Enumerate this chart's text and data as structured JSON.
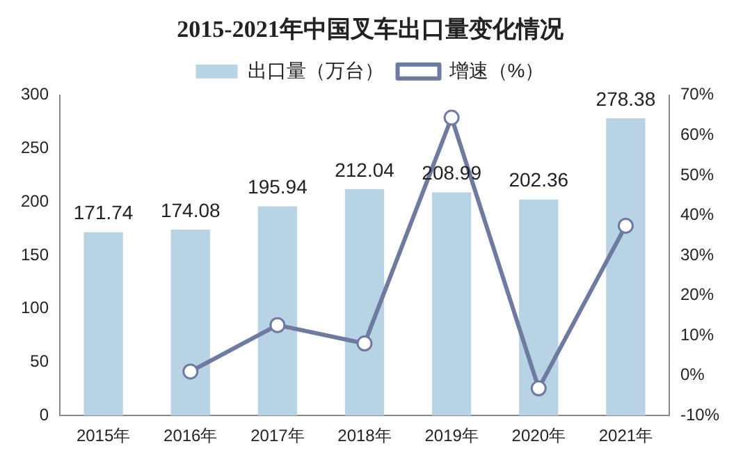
{
  "chart_data": {
    "type": "bar",
    "title": "2015-2021年中国叉车出口量变化情况",
    "categories": [
      "2015年",
      "2016年",
      "2017年",
      "2018年",
      "2019年",
      "2020年",
      "2021年"
    ],
    "series": [
      {
        "name": "出口量（万台）",
        "color": "#b8d3e4",
        "values": [
          171.74,
          174.08,
          195.94,
          212.04,
          208.99,
          202.36,
          278.38
        ],
        "value_labels": [
          "171.74",
          "174.08",
          "195.94",
          "212.04",
          "208.99",
          "202.36",
          "278.38"
        ]
      },
      {
        "name": "增速（%）",
        "type": "line",
        "axis": "y2",
        "color": "#6e7a9f",
        "values": [
          null,
          1,
          12.6,
          8,
          64.4,
          -3.2,
          37.4
        ]
      }
    ],
    "ylim": [
      0,
      300
    ],
    "yticks": [
      0,
      50,
      100,
      150,
      200,
      250,
      300
    ],
    "y2lim": [
      -10,
      70
    ],
    "y2ticks": [
      {
        "value": -10,
        "label": "-10%"
      },
      {
        "value": 0,
        "label": "0%"
      },
      {
        "value": 10,
        "label": "10%"
      },
      {
        "value": 20,
        "label": "20%"
      },
      {
        "value": 30,
        "label": "30%"
      },
      {
        "value": 40,
        "label": "40%"
      },
      {
        "value": 50,
        "label": "50%"
      },
      {
        "value": 60,
        "label": "60%"
      },
      {
        "value": 70,
        "label": "70%"
      }
    ],
    "legend": "top",
    "grid": false,
    "marker": "circle",
    "line_style": "solid"
  }
}
